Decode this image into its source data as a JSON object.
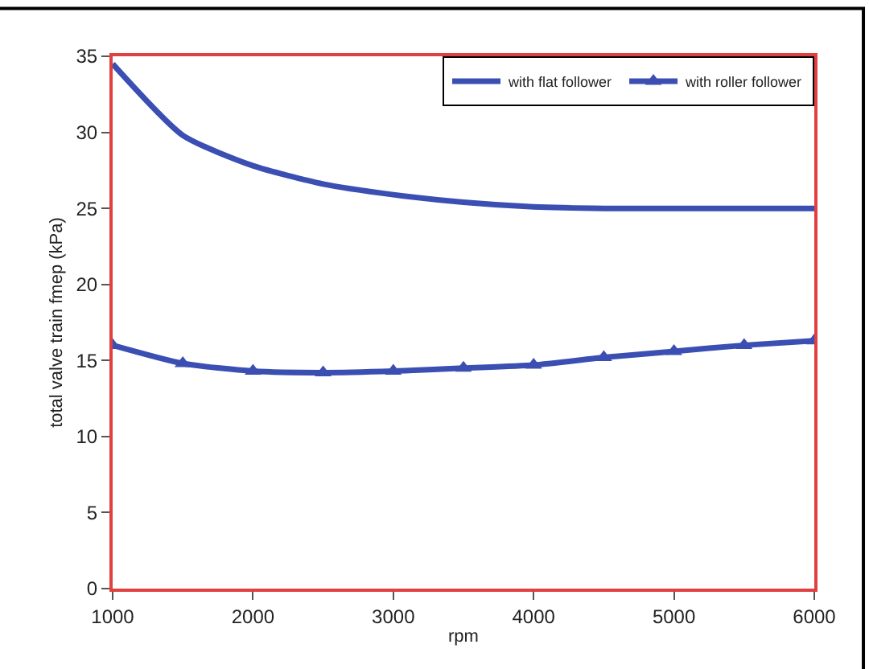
{
  "chart_data": {
    "type": "line",
    "xlabel": "rpm",
    "ylabel": "total valve train fmep (kPa)",
    "x": [
      1000,
      1500,
      2000,
      2500,
      3000,
      3500,
      4000,
      4500,
      5000,
      5500,
      6000
    ],
    "series": [
      {
        "name": "with flat follower",
        "color": "#3b4fb3",
        "marker": "none",
        "values": [
          34.5,
          29.8,
          27.8,
          26.6,
          25.9,
          25.4,
          25.1,
          25.0,
          25.0,
          25.0,
          25.0
        ]
      },
      {
        "name": "with roller follower",
        "color": "#3b4fb3",
        "marker": "triangle",
        "values": [
          16.0,
          14.8,
          14.3,
          14.2,
          14.3,
          14.5,
          14.7,
          15.2,
          15.6,
          16.0,
          16.3
        ]
      }
    ],
    "xlim": [
      1000,
      6000
    ],
    "xticks": [
      1000,
      2000,
      3000,
      4000,
      5000,
      6000
    ],
    "ylim": [
      0,
      35
    ],
    "yticks": [
      0,
      5,
      10,
      15,
      20,
      25,
      30,
      35
    ],
    "legend": "top right"
  }
}
